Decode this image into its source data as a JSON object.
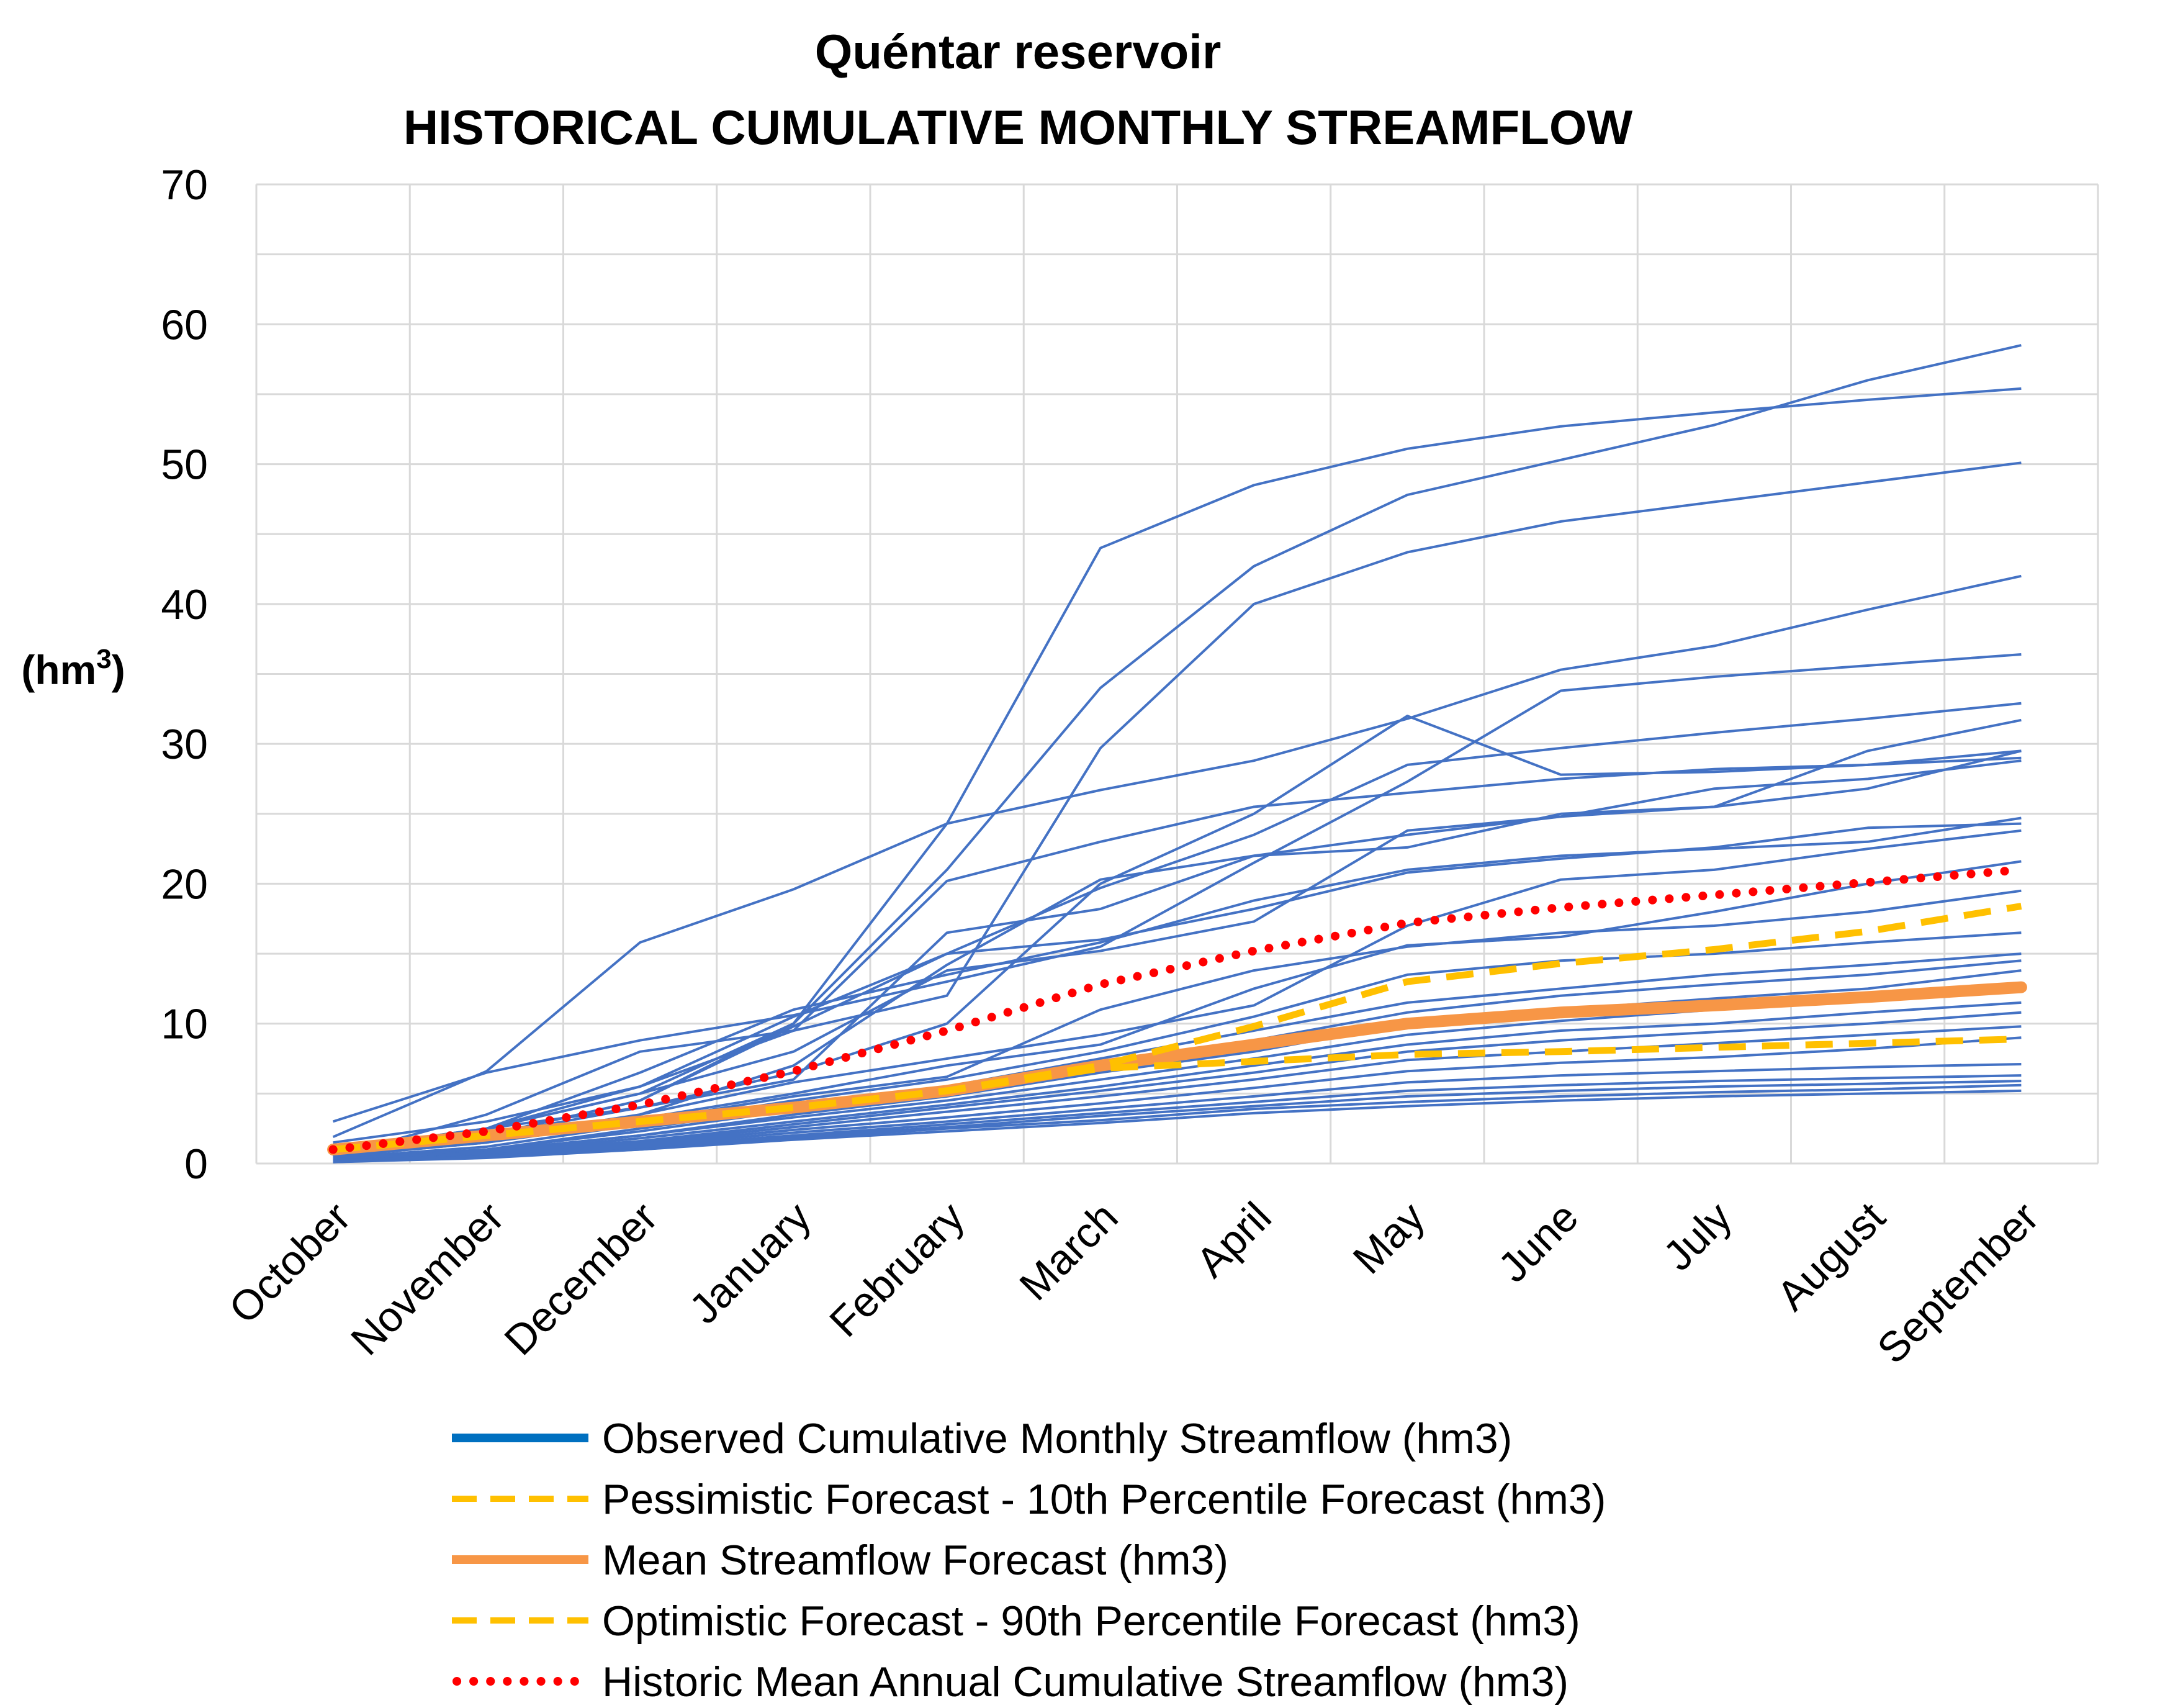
{
  "chart_data": {
    "type": "line",
    "title": "Quéntar reservoir",
    "subtitle": "HISTORICAL  CUMULATIVE MONTHLY STREAMFLOW",
    "ylabel": "(hm",
    "ylabel_sup": "3",
    "ylabel_close": ")",
    "xlabel": "",
    "ylim": [
      0,
      70
    ],
    "yticks": [
      0,
      10,
      20,
      30,
      40,
      50,
      60,
      70
    ],
    "grid": true,
    "legend_position": "bottom",
    "categories": [
      "October",
      "November",
      "December",
      "January",
      "February",
      "March",
      "April",
      "May",
      "June",
      "July",
      "August",
      "September"
    ],
    "observed_color": "#4472C4",
    "observed_series": [
      [
        1.9,
        6.6,
        15.8,
        19.6,
        24.3,
        26.7,
        28.8,
        31.8,
        35.3,
        37.0,
        39.6,
        42.0
      ],
      [
        1.0,
        2.5,
        5.0,
        10.0,
        24.3,
        44.0,
        48.5,
        51.1,
        52.7,
        53.7,
        54.6,
        55.4
      ],
      [
        0.5,
        2.0,
        4.5,
        10.0,
        21.0,
        34.0,
        42.7,
        47.8,
        50.3,
        52.8,
        56.0,
        58.5
      ],
      [
        0.8,
        2.5,
        5.5,
        9.5,
        12.0,
        29.7,
        40.0,
        43.7,
        45.9,
        47.3,
        48.7,
        50.1
      ],
      [
        3.0,
        6.5,
        8.8,
        10.6,
        13.0,
        15.5,
        21.5,
        27.3,
        33.8,
        34.8,
        35.6,
        36.4
      ],
      [
        0.5,
        3.5,
        8.0,
        9.5,
        20.2,
        23.0,
        25.5,
        26.5,
        27.5,
        28.2,
        28.5,
        29.5
      ],
      [
        1.5,
        3.0,
        5.5,
        10.5,
        15.0,
        19.7,
        23.5,
        28.5,
        29.7,
        30.8,
        31.8,
        32.9
      ],
      [
        1.0,
        2.5,
        4.0,
        6.5,
        10.0,
        20.0,
        25.0,
        32.0,
        27.8,
        28.0,
        28.5,
        29.0
      ],
      [
        0.8,
        2.0,
        4.0,
        6.0,
        16.5,
        18.2,
        22.0,
        22.6,
        25.0,
        25.5,
        29.5,
        31.7
      ],
      [
        0.6,
        1.8,
        3.5,
        7.0,
        14.2,
        20.3,
        22.0,
        23.5,
        24.8,
        26.8,
        27.5,
        28.8
      ],
      [
        0.5,
        2.5,
        6.5,
        11.0,
        13.5,
        15.8,
        18.8,
        21.0,
        22.0,
        22.5,
        23.0,
        24.7
      ],
      [
        0.5,
        2.0,
        4.5,
        9.8,
        15.0,
        16.0,
        18.2,
        20.8,
        21.8,
        22.6,
        24.0,
        24.3
      ],
      [
        0.8,
        2.5,
        5.0,
        8.0,
        13.8,
        15.2,
        17.3,
        23.8,
        24.8,
        25.5,
        26.8,
        29.5
      ],
      [
        0.6,
        1.6,
        3.5,
        5.8,
        7.5,
        9.2,
        11.3,
        17.0,
        20.3,
        21.0,
        22.5,
        23.8
      ],
      [
        0.5,
        1.5,
        3.2,
        5.0,
        7.0,
        8.5,
        12.5,
        15.6,
        16.2,
        18.0,
        20.0,
        21.6
      ],
      [
        0.5,
        1.5,
        3.0,
        4.8,
        6.2,
        11.0,
        13.8,
        15.5,
        16.5,
        17.0,
        18.0,
        19.5
      ],
      [
        0.4,
        1.2,
        2.8,
        4.5,
        6.0,
        8.0,
        10.5,
        13.5,
        14.5,
        15.0,
        15.8,
        16.5
      ],
      [
        0.4,
        1.0,
        2.5,
        4.0,
        5.5,
        7.5,
        9.5,
        11.5,
        12.5,
        13.5,
        14.2,
        15.0
      ],
      [
        0.3,
        1.0,
        2.3,
        3.8,
        5.0,
        7.0,
        8.8,
        10.8,
        12.0,
        12.8,
        13.5,
        14.5
      ],
      [
        0.3,
        0.9,
        2.0,
        3.5,
        4.8,
        6.5,
        8.0,
        10.0,
        11.0,
        11.8,
        12.5,
        13.8
      ],
      [
        0.3,
        0.9,
        2.0,
        3.3,
        4.5,
        6.0,
        7.5,
        9.2,
        10.2,
        11.0,
        11.8,
        12.8
      ],
      [
        0.3,
        0.8,
        1.8,
        3.0,
        4.2,
        5.5,
        7.0,
        8.5,
        9.5,
        10.0,
        10.8,
        11.5
      ],
      [
        0.2,
        0.8,
        1.6,
        2.8,
        4.0,
        5.2,
        6.5,
        8.0,
        8.8,
        9.4,
        10.0,
        10.8
      ],
      [
        0.2,
        0.7,
        1.5,
        2.6,
        3.7,
        4.8,
        6.0,
        7.4,
        8.0,
        8.6,
        9.2,
        9.8
      ],
      [
        0.2,
        0.6,
        1.4,
        2.4,
        3.3,
        4.3,
        5.4,
        6.6,
        7.2,
        7.6,
        8.2,
        9.0
      ],
      [
        0.2,
        0.6,
        1.3,
        2.2,
        3.0,
        3.9,
        4.8,
        5.8,
        6.3,
        6.6,
        6.9,
        7.1
      ],
      [
        0.2,
        0.5,
        1.2,
        2.0,
        2.8,
        3.6,
        4.4,
        5.2,
        5.6,
        5.9,
        6.1,
        6.3
      ],
      [
        0.2,
        0.5,
        1.1,
        1.9,
        2.6,
        3.4,
        4.1,
        4.8,
        5.2,
        5.5,
        5.7,
        5.9
      ],
      [
        0.1,
        0.5,
        1.0,
        1.8,
        2.5,
        3.1,
        3.9,
        4.4,
        4.8,
        5.1,
        5.3,
        5.6
      ],
      [
        0.1,
        0.4,
        1.0,
        1.7,
        2.3,
        2.9,
        3.6,
        4.1,
        4.5,
        4.8,
        5.0,
        5.2
      ]
    ],
    "series": [
      {
        "name": "Pessimistic Forecast - 10th Percentile Forecast (hm3)",
        "color": "#FFC000",
        "style": "dashed",
        "values": [
          1.0,
          2.0,
          3.0,
          4.0,
          5.2,
          6.8,
          7.3,
          7.8,
          8.0,
          8.3,
          8.6,
          8.9
        ]
      },
      {
        "name": "Mean Streamflow Forecast (hm3)",
        "color": "#F79646",
        "style": "solid",
        "values": [
          1.0,
          2.0,
          3.0,
          4.0,
          5.2,
          7.0,
          8.5,
          10.0,
          10.8,
          11.3,
          11.9,
          12.6
        ]
      },
      {
        "name": "Optimistic Forecast - 90th Percentile Forecast (hm3)",
        "color": "#FFC000",
        "style": "dashed",
        "values": [
          1.0,
          2.0,
          3.0,
          4.0,
          5.2,
          7.0,
          9.8,
          13.0,
          14.3,
          15.3,
          16.6,
          18.4
        ]
      },
      {
        "name": "Historic Mean Annual Cumulative Streamflow  (hm3)",
        "color": "#FF0000",
        "style": "dotted",
        "values": [
          1.0,
          2.3,
          4.2,
          6.6,
          9.5,
          12.8,
          15.2,
          17.2,
          18.3,
          19.2,
          20.1,
          21.0
        ]
      }
    ],
    "legend": [
      {
        "label": "Observed Cumulative Monthly Streamflow (hm3)",
        "color": "#0070C0",
        "style": "solid"
      },
      {
        "label": "Pessimistic Forecast - 10th Percentile Forecast (hm3)",
        "color": "#FFC000",
        "style": "dashed"
      },
      {
        "label": "Mean Streamflow Forecast (hm3)",
        "color": "#F79646",
        "style": "solid"
      },
      {
        "label": "Optimistic Forecast - 90th Percentile Forecast (hm3)",
        "color": "#FFC000",
        "style": "dashed"
      },
      {
        "label": "Historic Mean Annual Cumulative Streamflow  (hm3)",
        "color": "#FF0000",
        "style": "dotted"
      }
    ]
  }
}
